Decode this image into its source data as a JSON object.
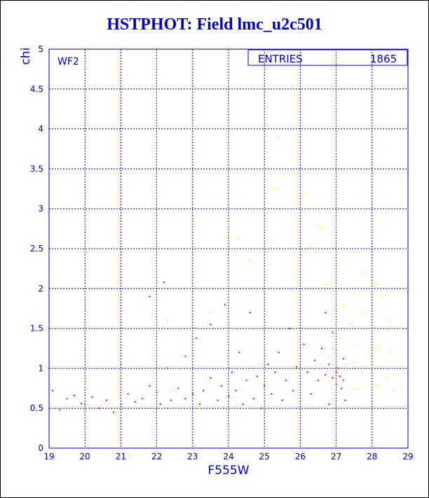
{
  "chart_data": {
    "type": "scatter",
    "title": "HSTPHOT: Field lmc_u2c501",
    "xlabel": "F555W",
    "ylabel": "chi",
    "xlim": [
      19,
      29
    ],
    "ylim": [
      0,
      5
    ],
    "grid": true,
    "x_ticks": [
      "19",
      "20",
      "21",
      "22",
      "23",
      "24",
      "25",
      "26",
      "27",
      "28",
      "29"
    ],
    "y_ticks": [
      "0",
      "0.5",
      "1",
      "1.5",
      "2",
      "2.5",
      "3",
      "3.5",
      "4",
      "4.5",
      "5"
    ],
    "panel_label": "WF2",
    "stats_label": "ENTRIES",
    "stats_value": "1865",
    "colors": {
      "frame": "#0000cc",
      "grid": "#0000cc",
      "red": "#ff0000",
      "yellow": "#ffff00",
      "text": "#0000cc"
    },
    "series": [
      {
        "color": "red",
        "points": [
          [
            19.1,
            0.72
          ],
          [
            19.3,
            0.48
          ],
          [
            19.5,
            0.62
          ],
          [
            19.7,
            0.66
          ],
          [
            19.9,
            0.56
          ],
          [
            20.0,
            0.55
          ],
          [
            20.2,
            0.64
          ],
          [
            20.4,
            0.5
          ],
          [
            20.6,
            0.6
          ],
          [
            20.8,
            0.45
          ],
          [
            21.0,
            0.55
          ],
          [
            21.0,
            1.05
          ],
          [
            21.2,
            0.68
          ],
          [
            21.4,
            0.58
          ],
          [
            21.6,
            0.62
          ],
          [
            21.8,
            0.78
          ],
          [
            21.8,
            1.9
          ],
          [
            22.0,
            0.7
          ],
          [
            22.1,
            0.55
          ],
          [
            22.2,
            2.08
          ],
          [
            22.3,
            1.0
          ],
          [
            22.4,
            0.6
          ],
          [
            22.6,
            0.75
          ],
          [
            22.8,
            1.15
          ],
          [
            22.8,
            0.62
          ],
          [
            23.0,
            0.68
          ],
          [
            23.1,
            1.38
          ],
          [
            23.2,
            0.55
          ],
          [
            23.3,
            0.72
          ],
          [
            23.5,
            0.88
          ],
          [
            23.5,
            1.55
          ],
          [
            23.7,
            0.6
          ],
          [
            23.8,
            0.78
          ],
          [
            23.9,
            1.8
          ],
          [
            24.0,
            0.65
          ],
          [
            24.1,
            0.95
          ],
          [
            24.2,
            0.72
          ],
          [
            24.3,
            1.2
          ],
          [
            24.4,
            0.55
          ],
          [
            24.5,
            0.85
          ],
          [
            24.6,
            1.7
          ],
          [
            24.7,
            0.62
          ],
          [
            24.8,
            0.9
          ],
          [
            24.9,
            0.5
          ],
          [
            25.0,
            0.78
          ],
          [
            25.1,
            1.05
          ],
          [
            25.2,
            0.68
          ],
          [
            25.3,
            0.95
          ],
          [
            25.4,
            1.2
          ],
          [
            25.5,
            0.6
          ],
          [
            25.6,
            0.85
          ],
          [
            25.7,
            1.5
          ],
          [
            25.8,
            0.72
          ],
          [
            25.9,
            1.02
          ],
          [
            26.0,
            0.8
          ],
          [
            26.1,
            1.3
          ],
          [
            26.2,
            0.95
          ],
          [
            26.3,
            0.68
          ],
          [
            26.4,
            1.1
          ],
          [
            26.5,
            0.85
          ],
          [
            26.6,
            1.25
          ],
          [
            26.7,
            0.92
          ],
          [
            26.8,
            1.05
          ],
          [
            26.9,
            0.88
          ],
          [
            27.0,
            0.95
          ],
          [
            27.0,
            0.8
          ],
          [
            27.05,
            1.0
          ],
          [
            27.1,
            0.9
          ],
          [
            27.15,
            0.75
          ],
          [
            27.2,
            0.85
          ],
          [
            27.2,
            1.12
          ],
          [
            27.25,
            0.6
          ],
          [
            26.9,
            1.45
          ],
          [
            26.7,
            1.7
          ],
          [
            26.8,
            0.55
          ]
        ]
      },
      {
        "color": "yellow",
        "points": [
          [
            25.35,
            3.9
          ],
          [
            25.3,
            3.25
          ],
          [
            26.1,
            3.18
          ],
          [
            26.1,
            2.95
          ],
          [
            26.5,
            2.78
          ],
          [
            26.6,
            2.75
          ],
          [
            24.0,
            2.65
          ],
          [
            24.3,
            2.62
          ],
          [
            25.2,
            2.6
          ],
          [
            25.1,
            2.48
          ],
          [
            26.3,
            2.52
          ],
          [
            26.4,
            2.45
          ],
          [
            24.6,
            2.35
          ],
          [
            27.0,
            2.3
          ],
          [
            27.6,
            2.45
          ],
          [
            27.8,
            2.2
          ],
          [
            25.8,
            2.15
          ],
          [
            26.7,
            2.05
          ],
          [
            28.1,
            2.05
          ],
          [
            27.5,
            1.95
          ],
          [
            28.3,
            1.9
          ],
          [
            28.9,
            2.0
          ],
          [
            27.2,
            1.8
          ],
          [
            27.8,
            1.7
          ],
          [
            28.5,
            1.6
          ],
          [
            27.4,
            1.55
          ],
          [
            28.0,
            1.45
          ],
          [
            28.8,
            1.5
          ],
          [
            27.6,
            1.3
          ],
          [
            28.2,
            1.25
          ],
          [
            27.9,
            1.15
          ],
          [
            28.5,
            1.2
          ],
          [
            27.5,
            1.08
          ],
          [
            28.0,
            1.02
          ],
          [
            27.7,
            0.95
          ],
          [
            28.4,
            0.88
          ],
          [
            28.1,
            0.8
          ],
          [
            27.6,
            0.75
          ],
          [
            28.6,
            0.72
          ],
          [
            26.9,
            1.25
          ],
          [
            27.1,
            1.38
          ],
          [
            26.8,
            1.15
          ],
          [
            27.3,
            1.05
          ],
          [
            22.3,
            1.6
          ],
          [
            23.5,
            1.7
          ]
        ]
      }
    ]
  }
}
